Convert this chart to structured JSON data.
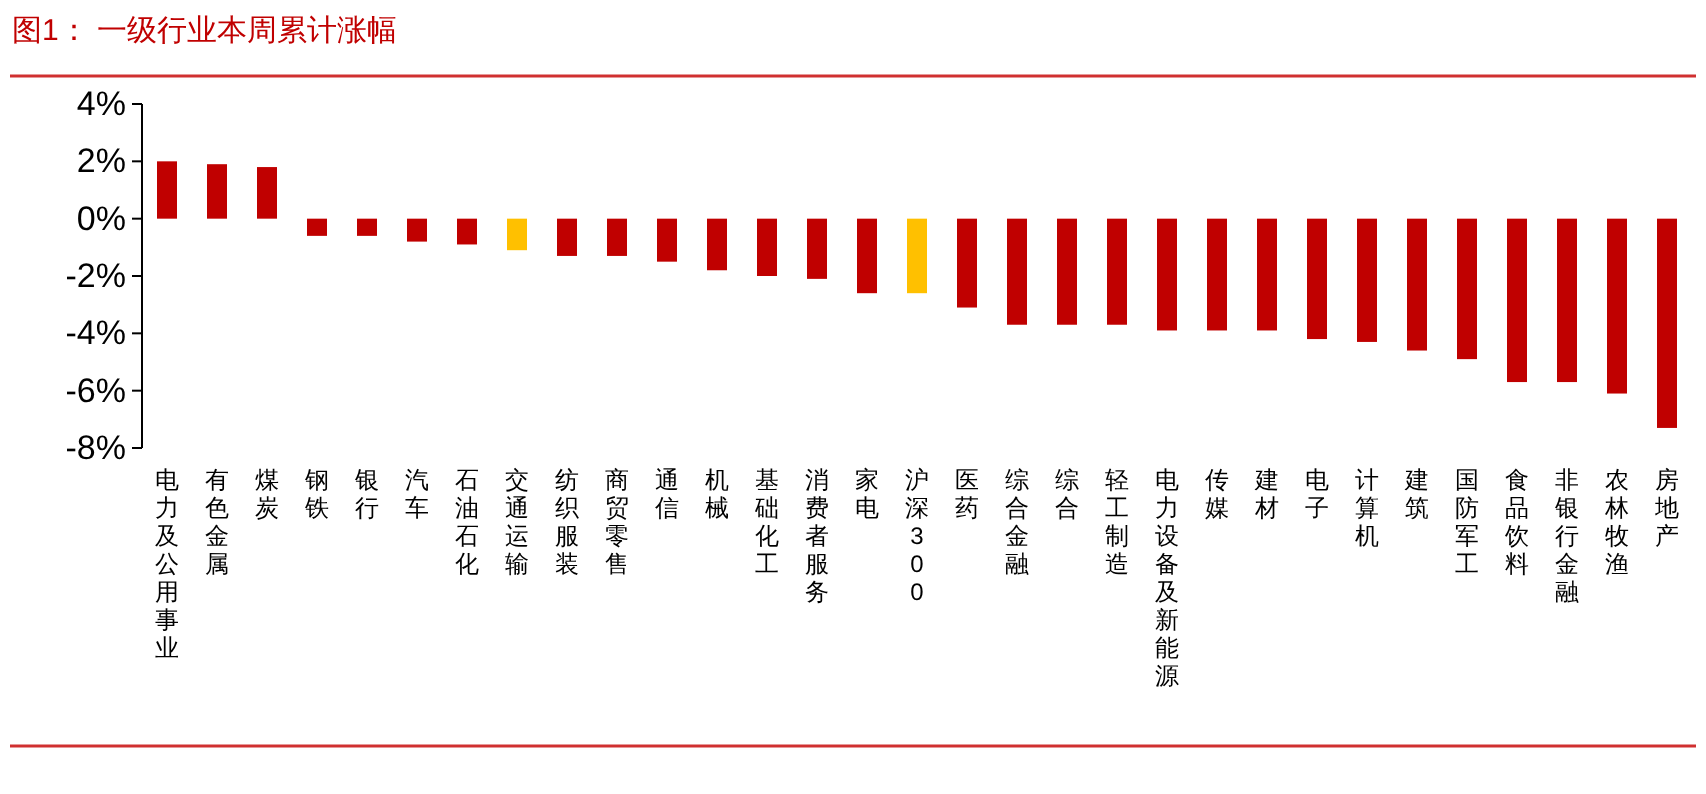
{
  "chart_data": {
    "type": "bar",
    "title": "图1：  一级行业本周累计涨幅",
    "categories": [
      "电力及公用事业",
      "有色金属",
      "煤炭",
      "钢铁",
      "银行",
      "汽车",
      "石油石化",
      "交通运输",
      "纺织服装",
      "商贸零售",
      "通信",
      "机械",
      "基础化工",
      "消费者服务",
      "家电",
      "沪深300",
      "医药",
      "综合金融",
      "综合",
      "轻工制造",
      "电力设备及新能源",
      "传媒",
      "建材",
      "电子",
      "计算机",
      "建筑",
      "国防军工",
      "食品饮料",
      "非银行金融",
      "农林牧渔",
      "房地产"
    ],
    "values": [
      2.0,
      1.9,
      1.8,
      -0.6,
      -0.6,
      -0.8,
      -0.9,
      -1.1,
      -1.3,
      -1.3,
      -1.5,
      -1.8,
      -2.0,
      -2.1,
      -2.6,
      -2.6,
      -3.1,
      -3.7,
      -3.7,
      -3.7,
      -3.9,
      -3.9,
      -3.9,
      -4.2,
      -4.3,
      -4.6,
      -4.9,
      -5.7,
      -5.7,
      -6.1,
      -7.3
    ],
    "colors": [
      "#c00000",
      "#c00000",
      "#c00000",
      "#c00000",
      "#c00000",
      "#c00000",
      "#c00000",
      "#ffc000",
      "#c00000",
      "#c00000",
      "#c00000",
      "#c00000",
      "#c00000",
      "#c00000",
      "#c00000",
      "#ffc000",
      "#c00000",
      "#c00000",
      "#c00000",
      "#c00000",
      "#c00000",
      "#c00000",
      "#c00000",
      "#c00000",
      "#c00000",
      "#c00000",
      "#c00000",
      "#c00000",
      "#c00000",
      "#c00000",
      "#c00000"
    ],
    "ylim": [
      -8,
      4
    ],
    "yticks": [
      {
        "value": 4,
        "label": "4%"
      },
      {
        "value": 2,
        "label": "2%"
      },
      {
        "value": 0,
        "label": "0%"
      },
      {
        "value": -2,
        "label": "-2%"
      },
      {
        "value": -4,
        "label": "-4%"
      },
      {
        "value": -6,
        "label": "-6%"
      },
      {
        "value": -8,
        "label": "-8%"
      }
    ],
    "grid": false
  }
}
